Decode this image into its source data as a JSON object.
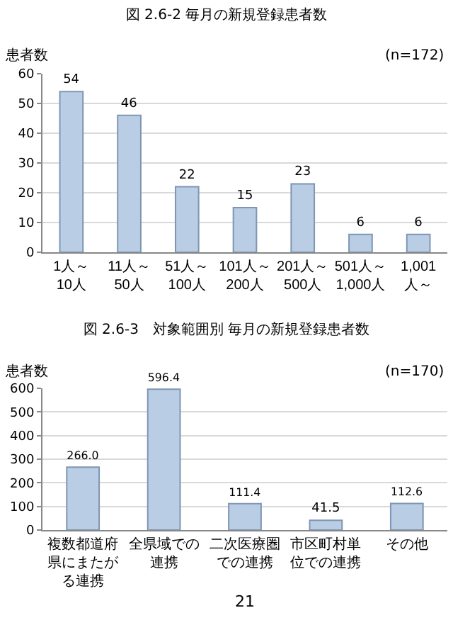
{
  "chart_data": [
    {
      "type": "bar",
      "title": "図 2.6-2 毎月の新規登録患者数",
      "ylabel": "患者数",
      "annotations": [
        "(n=172)"
      ],
      "categories": [
        "1人～10人",
        "11人～50人",
        "51人～100人",
        "101人～200人",
        "201人～500人",
        "501人～1,000人",
        "1,001人～"
      ],
      "values": [
        54,
        46,
        22,
        15,
        23,
        6,
        6
      ],
      "color": "#b9cde5",
      "ylim": [
        0,
        60
      ],
      "yticks": [
        0,
        10,
        20,
        30,
        40,
        50,
        60
      ],
      "grid": "y",
      "data_labels": true
    },
    {
      "type": "bar",
      "title": "図 2.6-3　対象範囲別 毎月の新規登録患者数",
      "ylabel": "患者数",
      "annotations": [
        "(n=170)",
        "21"
      ],
      "categories": [
        "複数都道府県にまたがる連携",
        "全県域での連携",
        "二次医療圏での連携",
        "市区町村単位での連携",
        "その他"
      ],
      "values": [
        266.0,
        596.4,
        111.4,
        41.5,
        112.6
      ],
      "value_labels": [
        "266.0",
        "596.4",
        "111.4",
        "41.5",
        "112.6"
      ],
      "color": "#b9cde5",
      "ylim": [
        0,
        600
      ],
      "yticks": [
        0,
        100,
        200,
        300,
        400,
        500,
        600
      ],
      "grid": "y"
    }
  ]
}
